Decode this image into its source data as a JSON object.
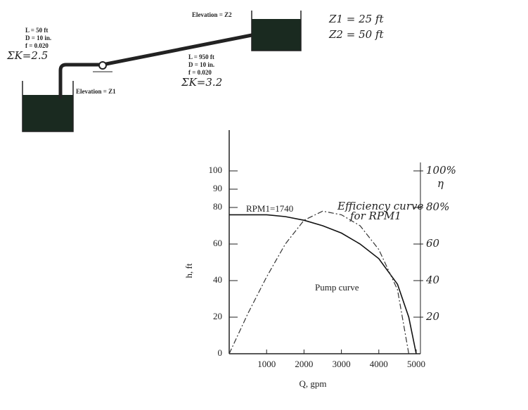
{
  "diagram": {
    "elevation_z2": "Elevation = Z2",
    "z1_given": "Z1 = 25 ft",
    "z2_given": "Z2 = 50 ft",
    "suction": [
      "L = 50 ft",
      "D = 10 in.",
      "f = 0.020",
      "ΣK=2.5"
    ],
    "elevation_z1": "Elevation = Z1",
    "discharge": [
      "L = 950 ft",
      "D = 10 in.",
      "f = 0.020",
      "ΣK=3.2"
    ]
  },
  "chart_data": {
    "type": "line",
    "x_label": "Q, gpm",
    "y_label": "h, ft",
    "y2_label": "η",
    "annotations": [
      "RPM1=1740",
      "Efficiency curve",
      "for RPM1",
      "Pump curve"
    ],
    "xlim": [
      0,
      5000
    ],
    "xticks": [
      1000,
      2000,
      3000,
      4000,
      5000
    ],
    "ylim": [
      0,
      120
    ],
    "yticks": [
      0,
      20,
      40,
      60,
      80,
      90,
      100
    ],
    "y2lim": [
      0,
      120
    ],
    "y2ticks": [
      20,
      40,
      60,
      {
        "value": 80,
        "label": "80%"
      },
      {
        "value": 100,
        "label": "100%"
      }
    ],
    "series": [
      {
        "name": "Pump curve",
        "color": "#111111",
        "style": "solid",
        "x": [
          0,
          500,
          1000,
          1500,
          2000,
          2500,
          3000,
          3500,
          4000,
          4500,
          4800,
          5000
        ],
        "values": [
          76,
          76,
          76,
          75,
          73,
          70,
          66,
          60,
          52,
          38,
          20,
          0
        ]
      },
      {
        "name": "Efficiency curve",
        "color": "#333333",
        "style": "dashdot",
        "axis": "y2",
        "x": [
          0,
          500,
          1000,
          1500,
          2000,
          2500,
          3000,
          3500,
          4000,
          4500,
          4800
        ],
        "values": [
          0,
          22,
          42,
          60,
          73,
          78,
          76,
          70,
          57,
          35,
          0
        ]
      }
    ]
  }
}
